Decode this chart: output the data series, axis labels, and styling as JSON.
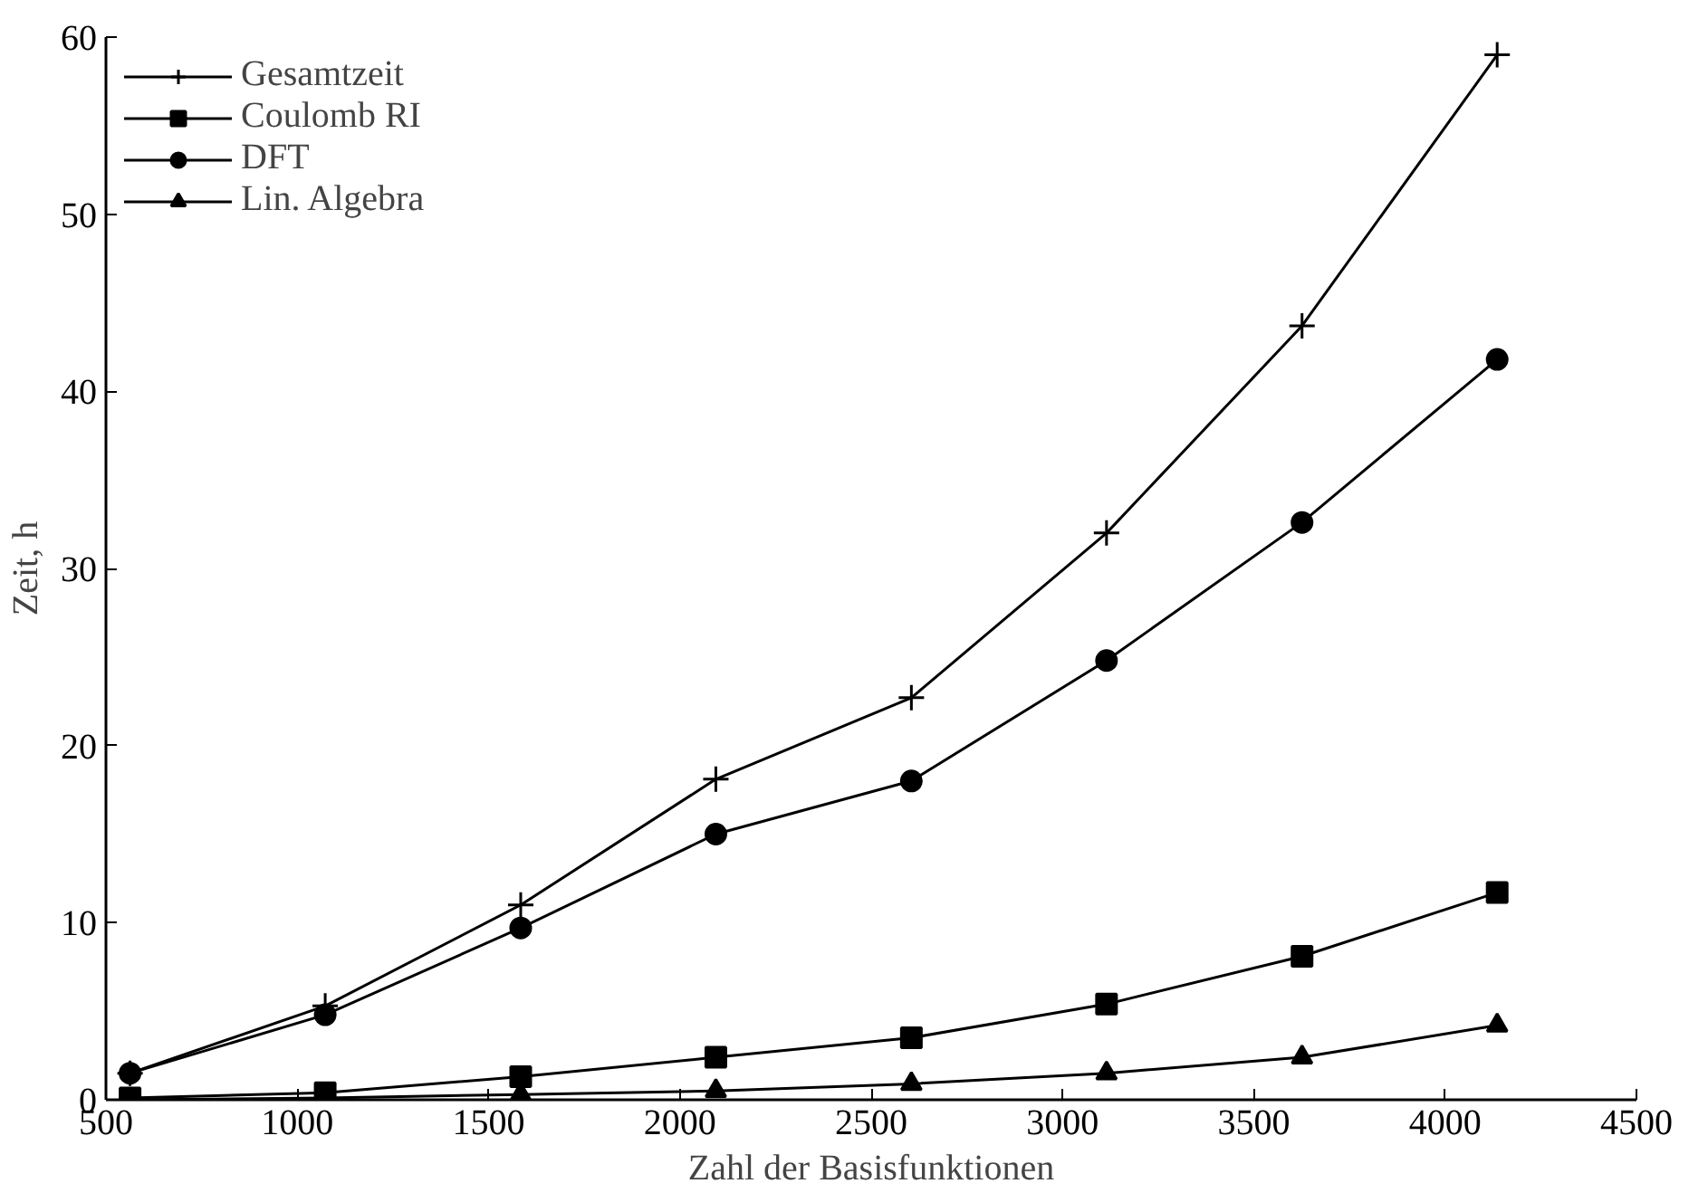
{
  "chart_data": {
    "type": "line",
    "xlabel": "Zahl der Basisfunktionen",
    "ylabel": "Zeit, h",
    "x": [
      563,
      1073,
      1584,
      2094,
      2605,
      3115,
      3626,
      4136
    ],
    "xlim": [
      500,
      4500
    ],
    "xticks": [
      500,
      1000,
      1500,
      2000,
      2500,
      3000,
      3500,
      4000,
      4500
    ],
    "ylim": [
      0,
      60
    ],
    "yticks": [
      0,
      10,
      20,
      30,
      40,
      50,
      60
    ],
    "grid": false,
    "legend": "top left",
    "line_style": "solid",
    "series": [
      {
        "name": "Gesamtzeit",
        "color": "#000000",
        "marker": "cross",
        "values": [
          1.5,
          5.3,
          11.0,
          18.1,
          22.7,
          32.0,
          43.7,
          59.0
        ]
      },
      {
        "name": "Coulomb RI",
        "color": "#000000",
        "marker": "square",
        "values": [
          0.1,
          0.4,
          1.3,
          2.4,
          3.5,
          5.4,
          8.1,
          11.7
        ]
      },
      {
        "name": "DFT",
        "color": "#000000",
        "marker": "circle",
        "values": [
          1.5,
          4.8,
          9.7,
          15.0,
          18.0,
          24.8,
          32.6,
          41.8
        ]
      },
      {
        "name": "Lin. Algebra",
        "color": "#000000",
        "marker": "triangle",
        "values": [
          0.0,
          0.1,
          0.3,
          0.5,
          0.9,
          1.5,
          2.4,
          4.2
        ]
      }
    ]
  }
}
